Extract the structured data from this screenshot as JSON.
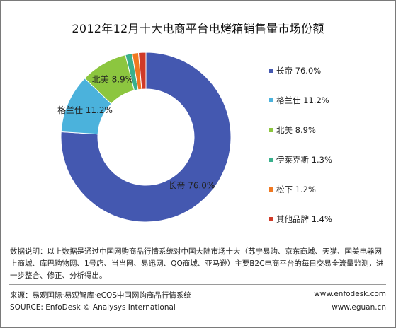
{
  "chart_data": {
    "type": "pie",
    "title": "2012年12月十大电商平台电烤箱销售量市场份额",
    "legend_position": "right",
    "slices": [
      {
        "label": "长帝",
        "value": 76.0,
        "display": "76.0%",
        "color": "#4458b0"
      },
      {
        "label": "格兰仕",
        "value": 11.2,
        "display": "11.2%",
        "color": "#4bb2dc"
      },
      {
        "label": "北美",
        "value": 8.9,
        "display": "8.9%",
        "color": "#8cc63f"
      },
      {
        "label": "伊莱克斯",
        "value": 1.3,
        "display": "1.3%",
        "color": "#3ab08c"
      },
      {
        "label": "松下",
        "value": 1.2,
        "display": "1.2%",
        "color": "#f07820"
      },
      {
        "label": "其他品牌",
        "value": 1.4,
        "display": "1.4%",
        "color": "#d03a28"
      }
    ],
    "data_labels": [
      {
        "label": "长帝",
        "value": "76.0%"
      },
      {
        "label": "格兰仕",
        "value": "11.2%"
      },
      {
        "label": "北美",
        "value": "8.9%"
      }
    ]
  },
  "footer": {
    "note": "数据说明：以上数据是通过中国网购商品行情系统对中国大陆市场十大（苏宁易购、京东商城、天猫、国美电器网上商城、库巴购物网、1号店、当当网、易迅网、QQ商城、亚马逊）主要B2C电商平台的每日交易全流量监测，进一步整合、修正、分析得出。",
    "source_cn": "来源：易观国际·易观智库·eCOS中国网购商品行情系统",
    "source_en": "SOURCE: EnfoDesk © Analysys International",
    "url1": "www.enfodesk.com",
    "url2": "www.eguan.cn"
  }
}
